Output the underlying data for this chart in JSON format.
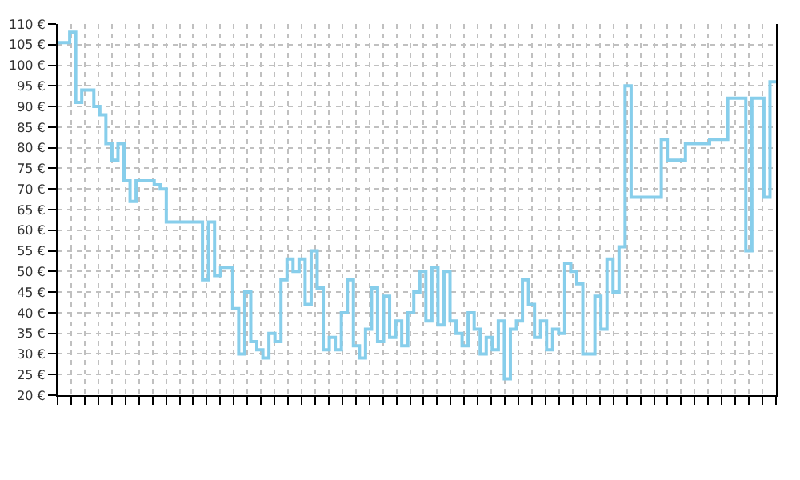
{
  "chart_data": {
    "type": "step",
    "categories": [
      null,
      null,
      null,
      null,
      null,
      null,
      null,
      null,
      null,
      null,
      null,
      null,
      null,
      null,
      null,
      null,
      null,
      null,
      null,
      null,
      null,
      null,
      null,
      null,
      null,
      null,
      null,
      null,
      null,
      null,
      null,
      null,
      null,
      null,
      null,
      null,
      null,
      null,
      null,
      null,
      null,
      null,
      null,
      null,
      null,
      null,
      null,
      null,
      null,
      null,
      null,
      null,
      null,
      null,
      null,
      null,
      null,
      null,
      null,
      null,
      null,
      null,
      null,
      null,
      null,
      null,
      null,
      null,
      null,
      null,
      null,
      null,
      null,
      null,
      null,
      null,
      null,
      null,
      null,
      null,
      null,
      null,
      null,
      null,
      null,
      null,
      null,
      null,
      null,
      null,
      null,
      null,
      null,
      null,
      null,
      null,
      null,
      null,
      null,
      null,
      null,
      null,
      null,
      null,
      null,
      null,
      null,
      null,
      null,
      null,
      null,
      null,
      null,
      null,
      null,
      null,
      null,
      null,
      null,
      null
    ],
    "series": [
      {
        "color": "#87ceeb",
        "values": [
          105.5,
          105.5,
          108,
          91,
          94,
          94,
          90,
          88,
          81,
          77,
          81,
          72,
          67,
          72,
          72,
          72,
          71,
          70,
          62,
          62,
          62,
          62,
          62,
          62,
          48,
          62,
          49,
          51,
          51,
          41,
          30,
          45,
          33,
          31,
          29,
          35,
          33,
          48,
          53,
          50,
          53,
          42,
          55,
          46,
          31,
          34,
          31,
          40,
          48,
          32,
          29,
          36,
          46,
          33,
          44,
          34,
          38,
          32,
          40,
          45,
          50,
          38,
          51,
          37,
          50,
          38,
          35,
          32,
          40,
          36,
          30,
          34,
          31,
          38,
          24,
          36,
          38,
          48,
          42,
          34,
          38,
          31,
          36,
          35,
          52,
          50,
          47,
          30,
          30,
          44,
          36,
          53,
          45,
          56,
          95,
          68,
          68,
          68,
          68,
          68,
          82,
          77,
          77,
          77,
          81,
          81,
          81,
          81,
          82,
          82,
          82,
          92,
          92,
          92,
          55,
          92,
          92,
          68,
          96,
          96
        ]
      }
    ],
    "ylim": [
      20,
      110
    ],
    "yticks": [
      {
        "value": 20,
        "label": "20 €"
      },
      {
        "value": 25,
        "label": "25 €"
      },
      {
        "value": 30,
        "label": "30 €"
      },
      {
        "value": 35,
        "label": "35 €"
      },
      {
        "value": 40,
        "label": "40 €"
      },
      {
        "value": 45,
        "label": "45 €"
      },
      {
        "value": 50,
        "label": "50 €"
      },
      {
        "value": 55,
        "label": "55 €"
      },
      {
        "value": 60,
        "label": "60 €"
      },
      {
        "value": 65,
        "label": "65 €"
      },
      {
        "value": 70,
        "label": "70 €"
      },
      {
        "value": 75,
        "label": "75 €"
      },
      {
        "value": 80,
        "label": "80 €"
      },
      {
        "value": 85,
        "label": "85 €"
      },
      {
        "value": 90,
        "label": "90 €"
      },
      {
        "value": 95,
        "label": "95 €"
      },
      {
        "value": 100,
        "label": "100 €"
      },
      {
        "value": 105,
        "label": "105 €"
      },
      {
        "value": 110,
        "label": "110 €"
      }
    ],
    "grid": true,
    "marker": "none",
    "line_style": "solid",
    "tick_labels": "y"
  }
}
